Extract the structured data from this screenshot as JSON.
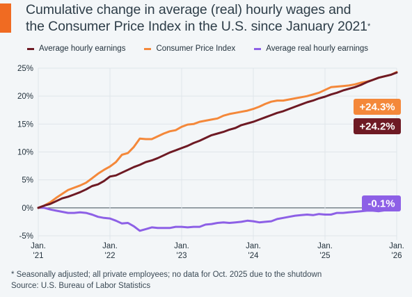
{
  "colors": {
    "accent": "#f06b22",
    "wages": "#6e1a24",
    "cpi": "#f4883a",
    "real": "#8d60e6",
    "grid": "#dfe5ea",
    "zero": "#3a4955"
  },
  "title": {
    "line1": "Cumulative change in average (real) hourly wages and",
    "line2": "the Consumer Price Index in the U.S. since January 2021",
    "star": "*"
  },
  "footnote": "* Seasonally adjusted; all private employees; no data for Oct. 2025 due to the shutdown",
  "source": "Source: U.S. Bureau of Labor Statistics",
  "chart_data": {
    "type": "line",
    "title": "Cumulative change in average (real) hourly wages and the Consumer Price Index in the U.S. since January 2021*",
    "xlabel": "",
    "ylabel": "",
    "ylim": [
      -5,
      25
    ],
    "xlim": [
      0,
      60
    ],
    "y_ticks": [
      {
        "value": 25,
        "label": "25%"
      },
      {
        "value": 20,
        "label": "20%"
      },
      {
        "value": 15,
        "label": "15%"
      },
      {
        "value": 10,
        "label": "10%"
      },
      {
        "value": 5,
        "label": "5%"
      },
      {
        "value": 0,
        "label": "0%"
      },
      {
        "value": -5,
        "label": "-5%"
      }
    ],
    "x_ticks": [
      {
        "value": 0,
        "line1": "Jan.",
        "line2": "'21"
      },
      {
        "value": 12,
        "line1": "Jan.",
        "line2": "'22"
      },
      {
        "value": 24,
        "line1": "Jan.",
        "line2": "'23"
      },
      {
        "value": 36,
        "line1": "Jan.",
        "line2": "'24"
      },
      {
        "value": 48,
        "line1": "Jan.",
        "line2": "'25"
      },
      {
        "value": 60,
        "line1": "Jan.",
        "line2": "'26"
      }
    ],
    "grid": true,
    "legend_position": "top",
    "series": [
      {
        "key": "wages",
        "name": "Average hourly earnings",
        "values": [
          [
            0,
            0
          ],
          [
            1,
            0.4
          ],
          [
            2,
            0.7
          ],
          [
            3,
            1.2
          ],
          [
            4,
            1.7
          ],
          [
            5,
            2.0
          ],
          [
            6,
            2.4
          ],
          [
            7,
            2.8
          ],
          [
            8,
            3.3
          ],
          [
            9,
            3.9
          ],
          [
            10,
            4.2
          ],
          [
            11,
            4.8
          ],
          [
            12,
            5.6
          ],
          [
            13,
            5.8
          ],
          [
            14,
            6.3
          ],
          [
            15,
            6.8
          ],
          [
            16,
            7.3
          ],
          [
            17,
            7.7
          ],
          [
            18,
            8.2
          ],
          [
            19,
            8.5
          ],
          [
            20,
            8.9
          ],
          [
            21,
            9.4
          ],
          [
            22,
            9.9
          ],
          [
            23,
            10.3
          ],
          [
            24,
            10.7
          ],
          [
            25,
            11.1
          ],
          [
            26,
            11.6
          ],
          [
            27,
            12.0
          ],
          [
            28,
            12.5
          ],
          [
            29,
            13.0
          ],
          [
            30,
            13.3
          ],
          [
            31,
            13.6
          ],
          [
            32,
            14.0
          ],
          [
            33,
            14.3
          ],
          [
            34,
            14.8
          ],
          [
            35,
            15.1
          ],
          [
            36,
            15.4
          ],
          [
            37,
            15.8
          ],
          [
            38,
            16.2
          ],
          [
            39,
            16.6
          ],
          [
            40,
            17.0
          ],
          [
            41,
            17.3
          ],
          [
            42,
            17.7
          ],
          [
            43,
            18.1
          ],
          [
            44,
            18.5
          ],
          [
            45,
            18.9
          ],
          [
            46,
            19.2
          ],
          [
            47,
            19.6
          ],
          [
            48,
            19.9
          ],
          [
            49,
            20.3
          ],
          [
            50,
            20.6
          ],
          [
            51,
            21.0
          ],
          [
            52,
            21.3
          ],
          [
            53,
            21.6
          ],
          [
            54,
            22.0
          ],
          [
            55,
            22.5
          ],
          [
            56,
            22.9
          ],
          [
            57,
            23.3
          ],
          [
            59,
            23.8
          ],
          [
            60,
            24.2
          ]
        ]
      },
      {
        "key": "cpi",
        "name": "Consumer Price Index",
        "values": [
          [
            0,
            0
          ],
          [
            1,
            0.4
          ],
          [
            2,
            1.0
          ],
          [
            3,
            1.8
          ],
          [
            4,
            2.5
          ],
          [
            5,
            3.2
          ],
          [
            6,
            3.6
          ],
          [
            7,
            4.0
          ],
          [
            8,
            4.5
          ],
          [
            9,
            5.3
          ],
          [
            10,
            6.1
          ],
          [
            11,
            6.8
          ],
          [
            12,
            7.4
          ],
          [
            13,
            8.2
          ],
          [
            14,
            9.5
          ],
          [
            15,
            9.8
          ],
          [
            16,
            10.9
          ],
          [
            17,
            12.4
          ],
          [
            18,
            12.3
          ],
          [
            19,
            12.3
          ],
          [
            20,
            12.8
          ],
          [
            21,
            13.3
          ],
          [
            22,
            13.7
          ],
          [
            23,
            13.9
          ],
          [
            24,
            14.5
          ],
          [
            25,
            14.9
          ],
          [
            26,
            15.0
          ],
          [
            27,
            15.4
          ],
          [
            28,
            15.6
          ],
          [
            29,
            15.8
          ],
          [
            30,
            16.0
          ],
          [
            31,
            16.5
          ],
          [
            32,
            16.8
          ],
          [
            33,
            17.0
          ],
          [
            34,
            17.2
          ],
          [
            35,
            17.4
          ],
          [
            36,
            17.7
          ],
          [
            37,
            18.1
          ],
          [
            38,
            18.6
          ],
          [
            39,
            19.0
          ],
          [
            40,
            19.2
          ],
          [
            41,
            19.2
          ],
          [
            42,
            19.4
          ],
          [
            43,
            19.6
          ],
          [
            44,
            19.8
          ],
          [
            45,
            20.0
          ],
          [
            46,
            20.3
          ],
          [
            47,
            20.6
          ],
          [
            48,
            21.1
          ],
          [
            49,
            21.6
          ],
          [
            50,
            21.7
          ],
          [
            51,
            21.8
          ],
          [
            52,
            21.9
          ],
          [
            53,
            22.1
          ],
          [
            54,
            22.4
          ],
          [
            55,
            22.6
          ],
          [
            56,
            22.9
          ],
          [
            57,
            23.3
          ],
          [
            59,
            23.8
          ],
          [
            60,
            24.3
          ]
        ]
      },
      {
        "key": "real",
        "name": "Average real hourly earnings",
        "values": [
          [
            0,
            0
          ],
          [
            1,
            0
          ],
          [
            2,
            -0.3
          ],
          [
            3,
            -0.5
          ],
          [
            4,
            -0.7
          ],
          [
            5,
            -0.9
          ],
          [
            6,
            -0.9
          ],
          [
            7,
            -0.8
          ],
          [
            8,
            -0.9
          ],
          [
            9,
            -1.2
          ],
          [
            10,
            -1.6
          ],
          [
            11,
            -1.8
          ],
          [
            12,
            -1.9
          ],
          [
            13,
            -2.3
          ],
          [
            14,
            -2.8
          ],
          [
            15,
            -2.7
          ],
          [
            16,
            -3.3
          ],
          [
            17,
            -4.1
          ],
          [
            18,
            -3.8
          ],
          [
            19,
            -3.5
          ],
          [
            20,
            -3.6
          ],
          [
            21,
            -3.6
          ],
          [
            22,
            -3.6
          ],
          [
            23,
            -3.4
          ],
          [
            24,
            -3.4
          ],
          [
            25,
            -3.5
          ],
          [
            26,
            -3.4
          ],
          [
            27,
            -3.4
          ],
          [
            28,
            -3.0
          ],
          [
            29,
            -2.9
          ],
          [
            30,
            -2.7
          ],
          [
            31,
            -2.6
          ],
          [
            32,
            -2.7
          ],
          [
            33,
            -2.6
          ],
          [
            34,
            -2.5
          ],
          [
            35,
            -2.3
          ],
          [
            36,
            -2.4
          ],
          [
            37,
            -2.6
          ],
          [
            38,
            -2.5
          ],
          [
            39,
            -2.4
          ],
          [
            40,
            -2.0
          ],
          [
            41,
            -1.8
          ],
          [
            42,
            -1.6
          ],
          [
            43,
            -1.4
          ],
          [
            44,
            -1.3
          ],
          [
            45,
            -1.2
          ],
          [
            46,
            -1.3
          ],
          [
            47,
            -1.1
          ],
          [
            48,
            -1.2
          ],
          [
            49,
            -1.2
          ],
          [
            50,
            -0.9
          ],
          [
            51,
            -0.9
          ],
          [
            52,
            -0.8
          ],
          [
            53,
            -0.7
          ],
          [
            54,
            -0.6
          ],
          [
            55,
            -0.5
          ],
          [
            56,
            -0.5
          ],
          [
            57,
            -0.6
          ],
          [
            59,
            -0.3
          ],
          [
            60,
            -0.1
          ]
        ]
      }
    ],
    "annotations": [
      {
        "series": "cpi",
        "label": "+24.3%"
      },
      {
        "series": "wages",
        "label": "+24.2%"
      },
      {
        "series": "real",
        "label": "-0.1%"
      }
    ]
  }
}
